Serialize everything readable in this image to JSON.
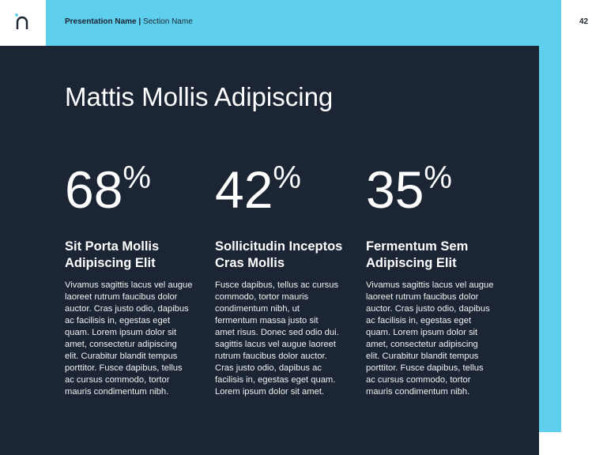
{
  "colors": {
    "accent": "#5fcfee",
    "panel": "#1c2533"
  },
  "header": {
    "presentation_name": "Presentation Name |",
    "section_name": "Section Name",
    "page_number": "42",
    "logo_icon": "n-logo"
  },
  "slide": {
    "title": "Mattis Mollis Adipiscing",
    "columns": [
      {
        "value": "68",
        "unit": "%",
        "heading": "Sit Porta Mollis\nAdipiscing Elit",
        "body": "Vivamus sagittis lacus vel augue\nlaoreet rutrum faucibus dolor\nauctor. Cras justo odio, dapibus\nac facilisis in, egestas eget\nquam. Lorem ipsum dolor sit\namet, consectetur adipiscing\nelit. Curabitur blandit tempus\nporttitor. Fusce dapibus, tellus\nac cursus commodo, tortor\nmauris condimentum nibh."
      },
      {
        "value": "42",
        "unit": "%",
        "heading": "Sollicitudin Inceptos\nCras Mollis",
        "body": "Fusce dapibus, tellus ac cursus\ncommodo, tortor mauris\ncondimentum nibh, ut\nfermentum massa justo sit\namet risus. Donec sed odio dui.\nsagittis lacus vel augue laoreet\nrutrum faucibus dolor auctor.\nCras justo odio, dapibus ac\nfacilisis in, egestas eget quam.\nLorem ipsum dolor sit amet."
      },
      {
        "value": "35",
        "unit": "%",
        "heading": "Fermentum Sem\nAdipiscing Elit",
        "body": "Vivamus sagittis lacus vel augue\nlaoreet rutrum faucibus dolor\nauctor. Cras justo odio, dapibus\nac facilisis in, egestas eget\nquam. Lorem ipsum dolor sit\namet, consectetur adipiscing\nelit. Curabitur blandit tempus\nporttitor. Fusce dapibus, tellus\nac cursus commodo, tortor\nmauris condimentum nibh."
      }
    ]
  }
}
